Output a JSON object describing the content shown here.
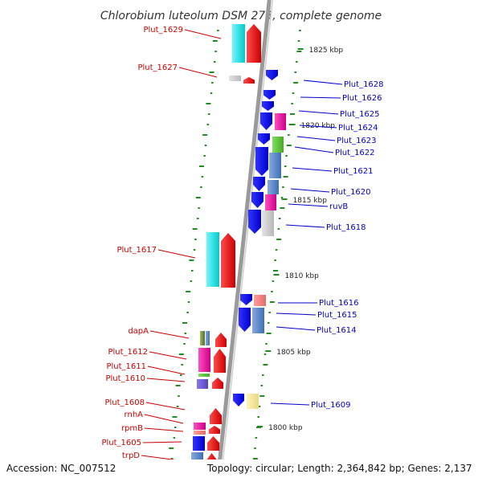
{
  "title": "Chlorobium luteolum DSM 273, complete genome",
  "footer": {
    "accession": "Accession: NC_007512",
    "summary": "Topology: circular; Length: 2,364,842 bp; Genes: 2,137"
  },
  "colors": {
    "backbone": "#9a9a9a",
    "forward_label": "#cc0000",
    "reverse_label": "#0000cc",
    "tick": "#228b22"
  },
  "ticks": [
    {
      "label": "1825 kbp"
    },
    {
      "label": "1820 kbp"
    },
    {
      "label": "1815 kbp"
    },
    {
      "label": "1810 kbp"
    },
    {
      "label": "1805 kbp"
    },
    {
      "label": "1800 kbp"
    }
  ],
  "left_labels": [
    {
      "text": "Plut_1629"
    },
    {
      "text": "Plut_1627"
    },
    {
      "text": "Plut_1617"
    },
    {
      "text": "dapA"
    },
    {
      "text": "Plut_1612"
    },
    {
      "text": "Plut_1611"
    },
    {
      "text": "Plut_1610"
    },
    {
      "text": "Plut_1608"
    },
    {
      "text": "rnhA"
    },
    {
      "text": "rpmB"
    },
    {
      "text": "Plut_1605"
    },
    {
      "text": "trpD"
    }
  ],
  "right_labels": [
    {
      "text": "Plut_1628"
    },
    {
      "text": "Plut_1626"
    },
    {
      "text": "Plut_1625"
    },
    {
      "text": "Plut_1624"
    },
    {
      "text": "Plut_1623"
    },
    {
      "text": "Plut_1622"
    },
    {
      "text": "Plut_1621"
    },
    {
      "text": "Plut_1620"
    },
    {
      "text": "ruvB"
    },
    {
      "text": "Plut_1618"
    },
    {
      "text": "Plut_1616"
    },
    {
      "text": "Plut_1615"
    },
    {
      "text": "Plut_1614"
    },
    {
      "text": "Plut_1609"
    }
  ]
}
